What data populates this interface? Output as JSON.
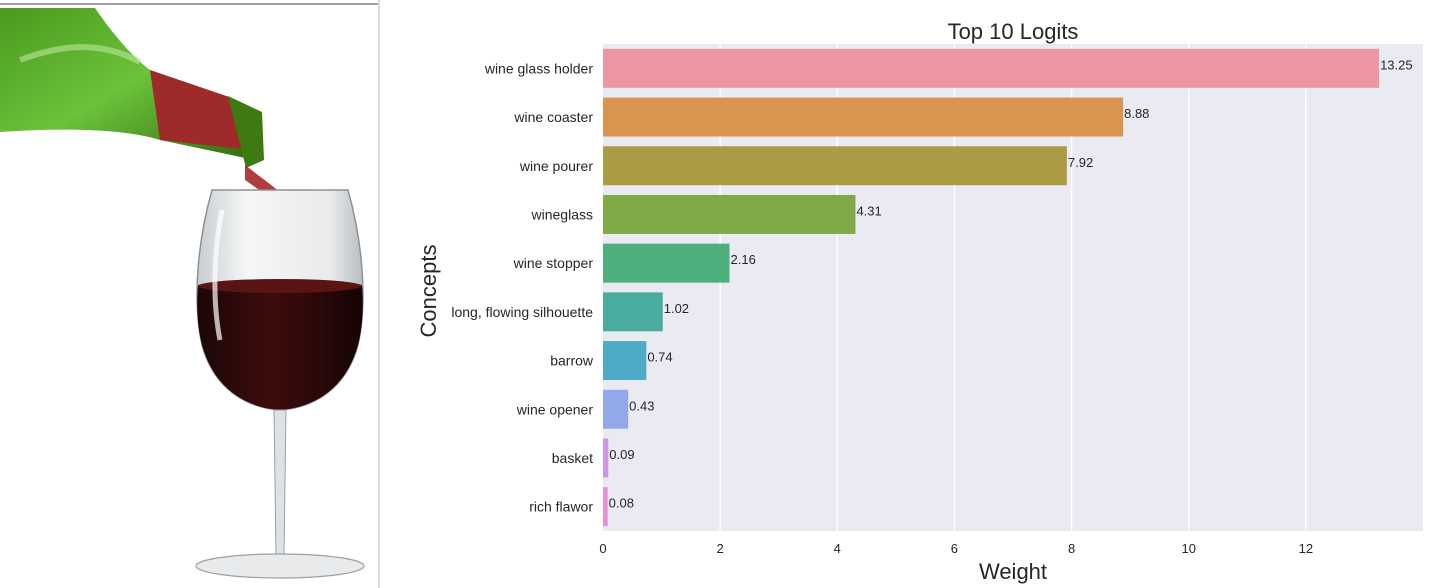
{
  "chart_data": {
    "type": "bar",
    "orientation": "horizontal",
    "title": "Top 10 Logits",
    "xlabel": "Weight",
    "ylabel": "Concepts",
    "xlim": [
      0,
      14
    ],
    "xticks": [
      0,
      2,
      4,
      6,
      8,
      10,
      12
    ],
    "grid": true,
    "categories": [
      "wine glass holder",
      "wine coaster",
      "wine pourer",
      "wineglass",
      "wine stopper",
      "long, flowing silhouette",
      "barrow",
      "wine opener",
      "basket",
      "rich flawor"
    ],
    "values": [
      13.25,
      8.88,
      7.92,
      4.31,
      2.16,
      1.02,
      0.74,
      0.43,
      0.09,
      0.08
    ],
    "value_labels": [
      "13.25",
      "8.88",
      "7.92",
      "4.31",
      "2.16",
      "1.02",
      "0.74",
      "0.43",
      "0.09",
      "0.08"
    ],
    "colors": [
      "#ec96a2",
      "#d9944f",
      "#ac9b45",
      "#81a948",
      "#4daf7b",
      "#49ac9f",
      "#4eabc5",
      "#93a8e8",
      "#d094e6",
      "#ea8fd3"
    ]
  }
}
